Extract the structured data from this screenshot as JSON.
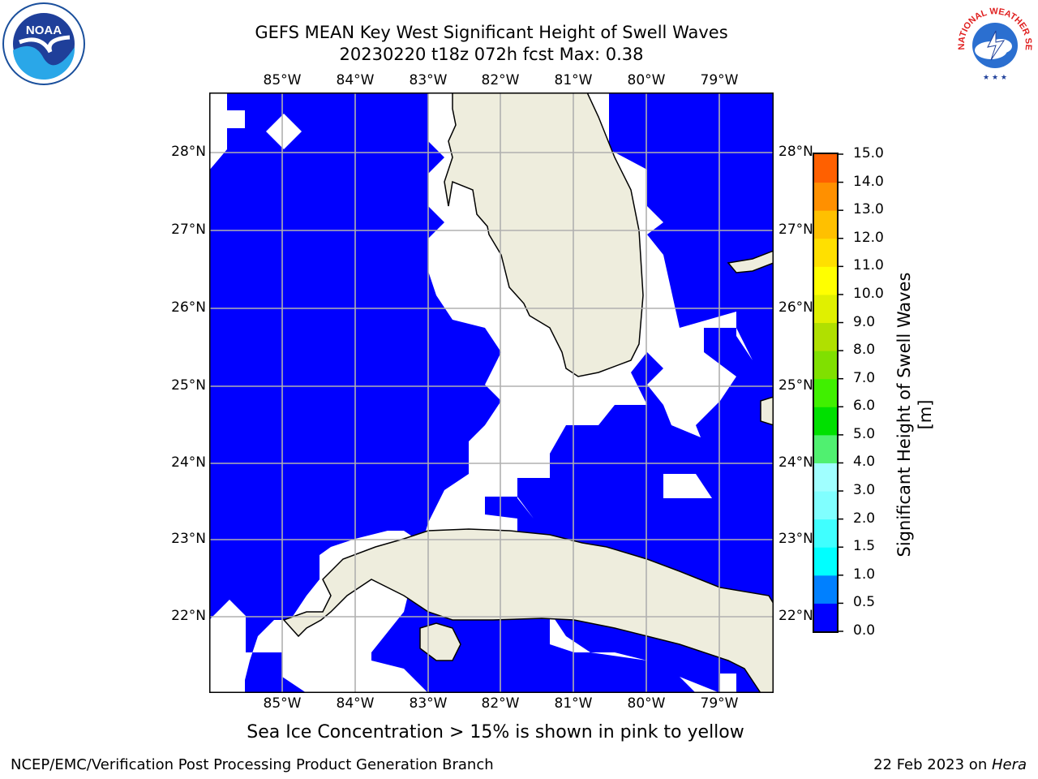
{
  "title": {
    "line1": "GEFS MEAN Key West Significant Height of Swell Waves",
    "line2": "20230220 t18z 072h fcst   Max: 0.38"
  },
  "map": {
    "lon_ticks": [
      "85°W",
      "84°W",
      "83°W",
      "82°W",
      "81°W",
      "80°W",
      "79°W"
    ],
    "lat_ticks": [
      "28°N",
      "27°N",
      "26°N",
      "25°N",
      "24°N",
      "23°N",
      "22°N"
    ],
    "colors": {
      "water": "#0000ff",
      "land": "#eeeddd",
      "gap": "#ffffff",
      "grid": "#b0b0b0",
      "coast": "#000000"
    }
  },
  "colorbar": {
    "label": "Significant Height of Swell Waves [m]",
    "tick_labels": [
      "15.0",
      "14.0",
      "13.0",
      "12.0",
      "11.0",
      "10.0",
      "9.0",
      "8.0",
      "7.0",
      "6.0",
      "5.0",
      "4.0",
      "3.0",
      "2.0",
      "1.5",
      "1.0",
      "0.5",
      "0.0"
    ],
    "colors_bottom_to_top": [
      "#0000ff",
      "#0080ff",
      "#00ffff",
      "#40ffff",
      "#80ffff",
      "#a0ffff",
      "#50f070",
      "#00e000",
      "#40f000",
      "#80e000",
      "#b0e000",
      "#e0f000",
      "#ffff00",
      "#ffe000",
      "#ffc000",
      "#ff9000",
      "#ff6000",
      "#ff3000",
      "#ff0000"
    ]
  },
  "note": "Sea Ice Concentration > 15% is shown in pink to yellow",
  "footer": {
    "left": "NCEP/EMC/Verification Post Processing Product Generation Branch",
    "right_date": "22 Feb 2023 on ",
    "right_host": "Hera"
  },
  "logos": {
    "noaa_text": "NOAA",
    "nws_text": "NATIONAL WEATHER SERVICE"
  }
}
